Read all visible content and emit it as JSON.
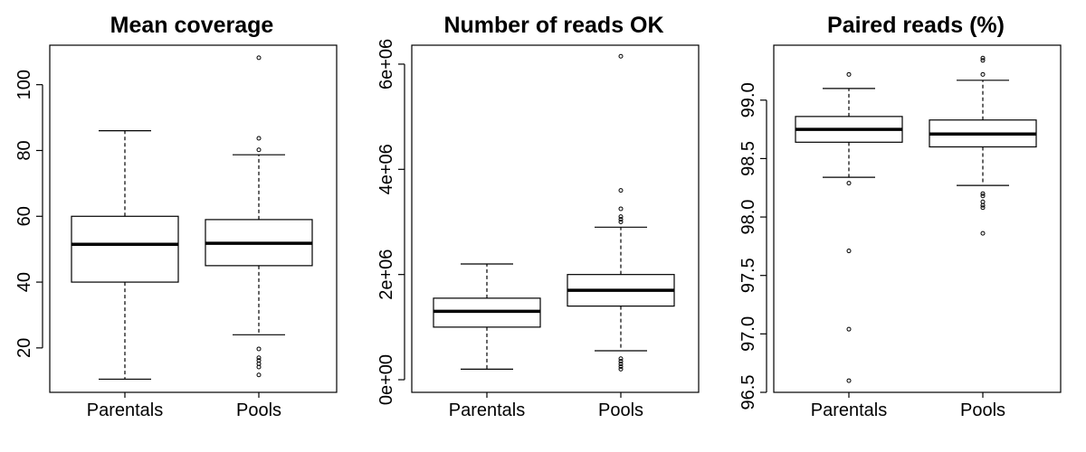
{
  "chart_data": [
    {
      "type": "box",
      "title": "Mean coverage",
      "categories": [
        "Parentals",
        "Pools"
      ],
      "y_ticks": [
        20,
        40,
        60,
        80,
        100
      ],
      "y_tick_labels": [
        "20",
        "40",
        "60",
        "80",
        "100"
      ],
      "ylim": [
        6.5,
        112
      ],
      "boxes": [
        {
          "category": "Parentals",
          "whisker_low": 10.5,
          "q1": 40,
          "median": 51.5,
          "q3": 60,
          "whisker_high": 86,
          "outliers": []
        },
        {
          "category": "Pools",
          "whisker_low": 24,
          "q1": 45,
          "median": 51.8,
          "q3": 59,
          "whisker_high": 78.7,
          "outliers": [
            11.8,
            14.2,
            15.2,
            16.2,
            17,
            19.7,
            80.2,
            83.7,
            108.2
          ]
        }
      ]
    },
    {
      "type": "box",
      "title": "Number of reads OK",
      "categories": [
        "Parentals",
        "Pools"
      ],
      "y_ticks": [
        0,
        2000000,
        4000000,
        6000000
      ],
      "y_tick_labels": [
        "0e+00",
        "2e+06",
        "4e+06",
        "6e+06"
      ],
      "ylim": [
        -240000,
        6360000
      ],
      "boxes": [
        {
          "category": "Parentals",
          "whisker_low": 200000,
          "q1": 1000000,
          "median": 1300000,
          "q3": 1550000,
          "whisker_high": 2200000,
          "outliers": []
        },
        {
          "category": "Pools",
          "whisker_low": 550000,
          "q1": 1400000,
          "median": 1700000,
          "q3": 2000000,
          "whisker_high": 2900000,
          "outliers": [
            200000,
            250000,
            300000,
            350000,
            400000,
            3000000,
            3050000,
            3100000,
            3250000,
            3600000,
            6150000
          ]
        }
      ]
    },
    {
      "type": "box",
      "title": "Paired reads (%)",
      "categories": [
        "Parentals",
        "Pools"
      ],
      "y_ticks": [
        96.5,
        97.0,
        97.5,
        98.0,
        98.5,
        99.0
      ],
      "y_tick_labels": [
        "96.5",
        "97.0",
        "97.5",
        "98.0",
        "98.5",
        "99.0"
      ],
      "ylim": [
        96.5,
        99.47
      ],
      "boxes": [
        {
          "category": "Parentals",
          "whisker_low": 98.34,
          "q1": 98.64,
          "median": 98.75,
          "q3": 98.86,
          "whisker_high": 99.1,
          "outliers": [
            96.6,
            97.04,
            97.71,
            98.29,
            99.22
          ]
        },
        {
          "category": "Pools",
          "whisker_low": 98.27,
          "q1": 98.6,
          "median": 98.71,
          "q3": 98.83,
          "whisker_high": 99.17,
          "outliers": [
            97.86,
            98.08,
            98.1,
            98.13,
            98.18,
            98.2,
            99.22,
            99.34,
            99.36
          ]
        }
      ]
    }
  ]
}
